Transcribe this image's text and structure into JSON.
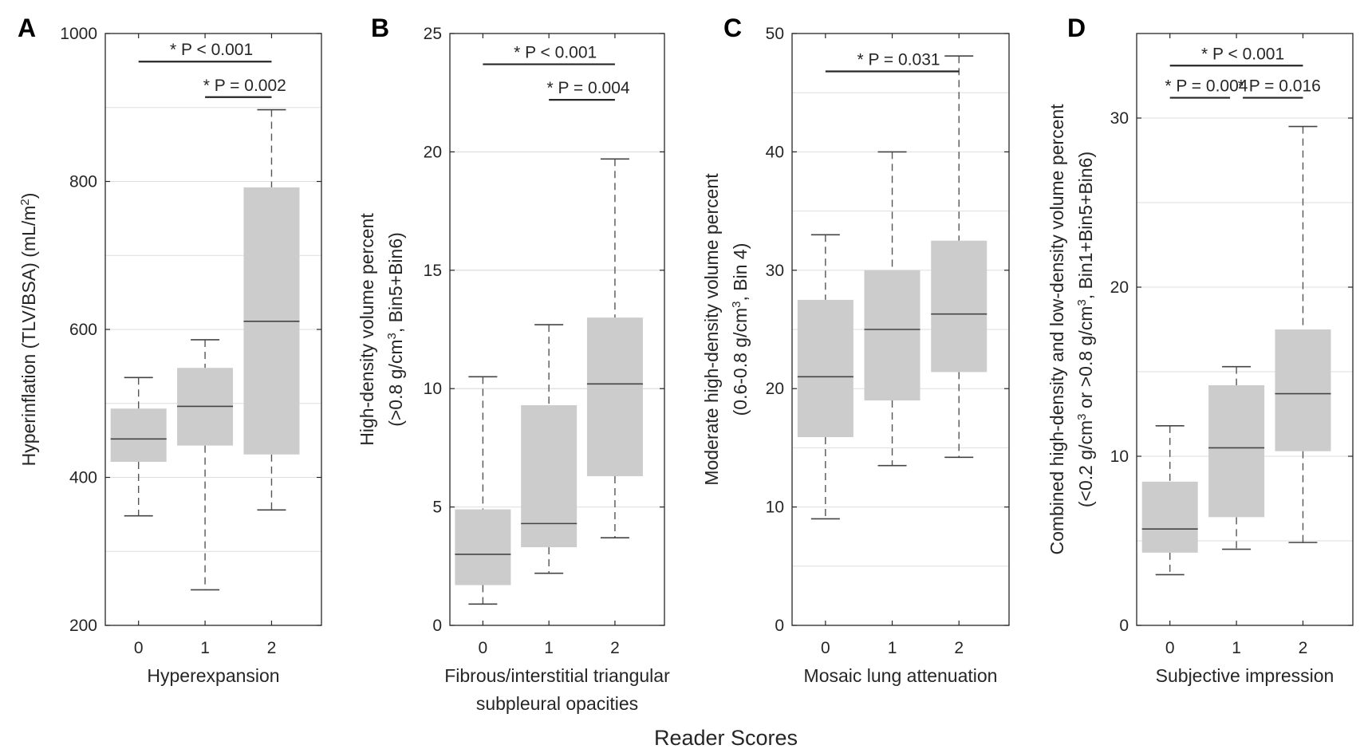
{
  "footer_label": "Reader Scores",
  "chart_data": [
    {
      "type": "box",
      "panel": "A",
      "categories": [
        "0",
        "1",
        "2"
      ],
      "xlabel": [
        "Hyperexpansion"
      ],
      "ylabel": [
        [
          {
            "t": "Hyperinflation (TLV/BSA) (mL/m"
          },
          {
            "t": "2",
            "sup": true
          },
          {
            "t": ")"
          }
        ]
      ],
      "ylim": [
        200,
        1000
      ],
      "yticks": [
        200,
        400,
        600,
        800,
        1000
      ],
      "grid": [
        300,
        500,
        700,
        900
      ],
      "boxes": [
        {
          "min": 348,
          "q1": 421,
          "median": 452,
          "q3": 493,
          "max": 535
        },
        {
          "min": 248,
          "q1": 443,
          "median": 496,
          "q3": 548,
          "max": 586
        },
        {
          "min": 356,
          "q1": 431,
          "median": 611,
          "q3": 792,
          "max": 897
        }
      ],
      "comparisons": [
        {
          "from": 0,
          "to": 2,
          "label": "P < 0.001",
          "star": "*",
          "y": 962
        },
        {
          "from": 1,
          "to": 2,
          "label": "P = 0.002",
          "star": "*",
          "y": 914
        }
      ]
    },
    {
      "type": "box",
      "panel": "B",
      "categories": [
        "0",
        "1",
        "2"
      ],
      "xlabel": [
        "Fibrous/interstitial triangular",
        "subpleural opacities"
      ],
      "ylabel": [
        [
          {
            "t": "High-density volume percent"
          }
        ],
        [
          {
            "t": "(>0.8 g/cm"
          },
          {
            "t": "3",
            "sup": true
          },
          {
            "t": ", Bin5+Bin6)"
          }
        ]
      ],
      "ylim": [
        0,
        25
      ],
      "yticks": [
        0,
        5,
        10,
        15,
        20,
        25
      ],
      "grid": [
        10,
        15,
        20
      ],
      "boxes": [
        {
          "min": 0.9,
          "q1": 1.7,
          "median": 3.0,
          "q3": 4.9,
          "max": 10.5
        },
        {
          "min": 2.2,
          "q1": 3.3,
          "median": 4.3,
          "q3": 9.3,
          "max": 12.7
        },
        {
          "min": 3.7,
          "q1": 6.3,
          "median": 10.2,
          "q3": 13.0,
          "max": 19.7
        }
      ],
      "comparisons": [
        {
          "from": 0,
          "to": 2,
          "label": "P < 0.001",
          "star": "*",
          "y": 23.7
        },
        {
          "from": 1,
          "to": 2,
          "label": "P = 0.004",
          "star": "*",
          "y": 22.2
        }
      ]
    },
    {
      "type": "box",
      "panel": "C",
      "categories": [
        "0",
        "1",
        "2"
      ],
      "xlabel": [
        "Mosaic lung attenuation"
      ],
      "ylabel": [
        [
          {
            "t": "Moderate high-density volume percent"
          }
        ],
        [
          {
            "t": "(0.6-0.8 g/cm"
          },
          {
            "t": "3",
            "sup": true
          },
          {
            "t": ", Bin 4)"
          }
        ]
      ],
      "ylim": [
        0,
        50
      ],
      "yticks": [
        0,
        10,
        20,
        30,
        40,
        50
      ],
      "grid": [
        5,
        15,
        25,
        35,
        45
      ],
      "boxes": [
        {
          "min": 9.0,
          "q1": 15.9,
          "median": 21.0,
          "q3": 27.5,
          "max": 33.0
        },
        {
          "min": 13.5,
          "q1": 19.0,
          "median": 25.0,
          "q3": 30.0,
          "max": 40.0
        },
        {
          "min": 14.2,
          "q1": 21.4,
          "median": 26.3,
          "q3": 32.5,
          "max": 48.1
        }
      ],
      "comparisons": [
        {
          "from": 0,
          "to": 2,
          "label": "P = 0.031",
          "star": "*",
          "y": 46.8
        }
      ]
    },
    {
      "type": "box",
      "panel": "D",
      "categories": [
        "0",
        "1",
        "2"
      ],
      "xlabel": [
        "Subjective impression"
      ],
      "ylabel": [
        [
          {
            "t": "Combined high-density and low-density volume percent"
          }
        ],
        [
          {
            "t": "(<0.2 g/cm"
          },
          {
            "t": "3",
            "sup": true
          },
          {
            "t": " or >0.8 g/cm"
          },
          {
            "t": "3",
            "sup": true
          },
          {
            "t": ", Bin1+Bin5+Bin6)"
          }
        ]
      ],
      "ylim": [
        0,
        35
      ],
      "yticks": [
        0,
        10,
        20,
        30
      ],
      "grid": [
        5,
        15,
        25
      ],
      "boxes": [
        {
          "min": 3.0,
          "q1": 4.3,
          "median": 5.7,
          "q3": 8.5,
          "max": 11.8
        },
        {
          "min": 4.5,
          "q1": 6.4,
          "median": 10.5,
          "q3": 14.2,
          "max": 15.3
        },
        {
          "min": 4.9,
          "q1": 10.3,
          "median": 13.7,
          "q3": 17.5,
          "max": 29.5
        }
      ],
      "comparisons": [
        {
          "from": 0,
          "to": 2,
          "label": "P < 0.001",
          "star": "*",
          "y": 33.1
        },
        {
          "from": 0,
          "to": 1,
          "label": "P = 0.004",
          "star": "*",
          "y": 31.2
        },
        {
          "from": 1,
          "to": 2,
          "label": "P = 0.016",
          "star": "*",
          "y": 31.2
        }
      ]
    }
  ]
}
